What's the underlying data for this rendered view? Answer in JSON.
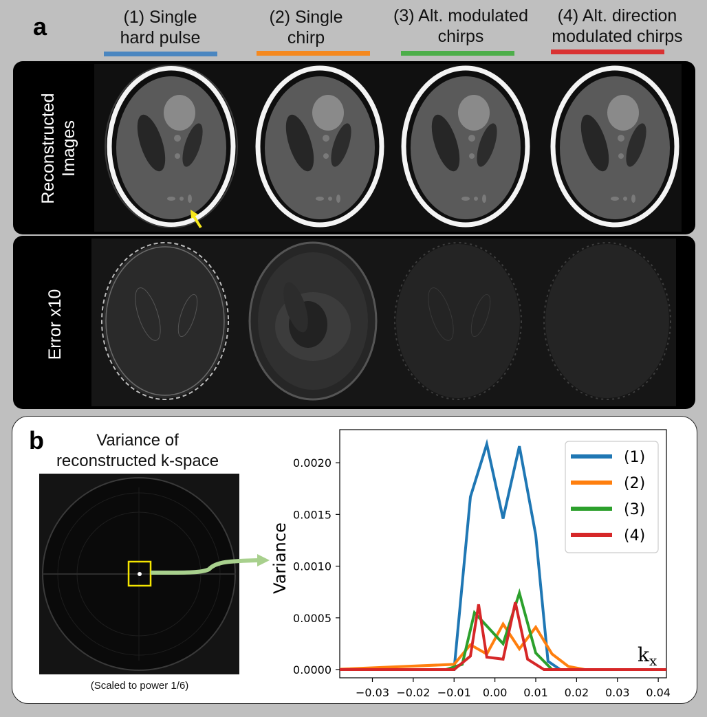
{
  "panel_a": {
    "label": "a",
    "columns": [
      {
        "line1": "(1)  Single",
        "line2": "hard pulse",
        "color": "#4a86c0"
      },
      {
        "line1": "(2) Single",
        "line2": "chirp",
        "color": "#f5891f"
      },
      {
        "line1": "(3) Alt. modulated",
        "line2": "chirps",
        "color": "#4dae4a"
      },
      {
        "line1": "(4) Alt. direction",
        "line2": "modulated chirps",
        "color": "#d93232"
      }
    ],
    "rows": [
      {
        "line1": "Reconstructed",
        "line2": "Images"
      },
      {
        "line1": "Error x10",
        "line2": ""
      }
    ]
  },
  "panel_b": {
    "label": "b",
    "kspace_title_line1": "Variance of",
    "kspace_title_line2": "reconstructed k-space",
    "kspace_caption": "(Scaled to power 1/6)"
  },
  "chart_data": {
    "type": "line",
    "xlabel": "k",
    "xlabel_sub": "x",
    "ylabel": "Variance",
    "xlim": [
      -0.038,
      0.042
    ],
    "ylim": [
      -8e-05,
      0.00232
    ],
    "xticks": [
      -0.03,
      -0.02,
      -0.01,
      0.0,
      0.01,
      0.02,
      0.03,
      0.04
    ],
    "xtick_labels": [
      "−0.03",
      "−0.02",
      "−0.01",
      "0.00",
      "0.01",
      "0.02",
      "0.03",
      "0.04"
    ],
    "yticks": [
      0.0,
      0.0005,
      0.001,
      0.0015,
      0.002
    ],
    "ytick_labels": [
      "0.0000",
      "0.0005",
      "0.0010",
      "0.0015",
      "0.0020"
    ],
    "legend_position": "top-right",
    "series": [
      {
        "name": "(1)",
        "color": "#1f77b4",
        "x": [
          -0.04,
          -0.01,
          -0.006,
          -0.002,
          0.002,
          0.006,
          0.01,
          0.013,
          0.016,
          0.042
        ],
        "y": [
          0,
          0,
          0.00167,
          0.00218,
          0.00146,
          0.00216,
          0.0013,
          8e-05,
          0,
          0
        ]
      },
      {
        "name": "(2)",
        "color": "#ff7f0e",
        "x": [
          -0.04,
          -0.01,
          -0.006,
          -0.002,
          0.002,
          0.006,
          0.01,
          0.014,
          0.018,
          0.022,
          0.042
        ],
        "y": [
          0,
          5e-05,
          0.00024,
          0.00015,
          0.00044,
          0.0002,
          0.00041,
          0.00015,
          3e-05,
          0,
          0
        ]
      },
      {
        "name": "(3)",
        "color": "#2ca02c",
        "x": [
          -0.04,
          -0.012,
          -0.008,
          -0.005,
          0.002,
          0.006,
          0.01,
          0.014,
          0.042
        ],
        "y": [
          0,
          0,
          5e-05,
          0.00055,
          0.00025,
          0.00074,
          0.00016,
          0,
          0
        ]
      },
      {
        "name": "(4)",
        "color": "#d62728",
        "x": [
          -0.04,
          -0.01,
          -0.006,
          -0.004,
          -0.002,
          0.002,
          0.005,
          0.008,
          0.012,
          0.042
        ],
        "y": [
          0,
          0,
          0.00013,
          0.00063,
          0.00012,
          0.0001,
          0.00065,
          0.0001,
          0,
          0
        ]
      }
    ]
  }
}
